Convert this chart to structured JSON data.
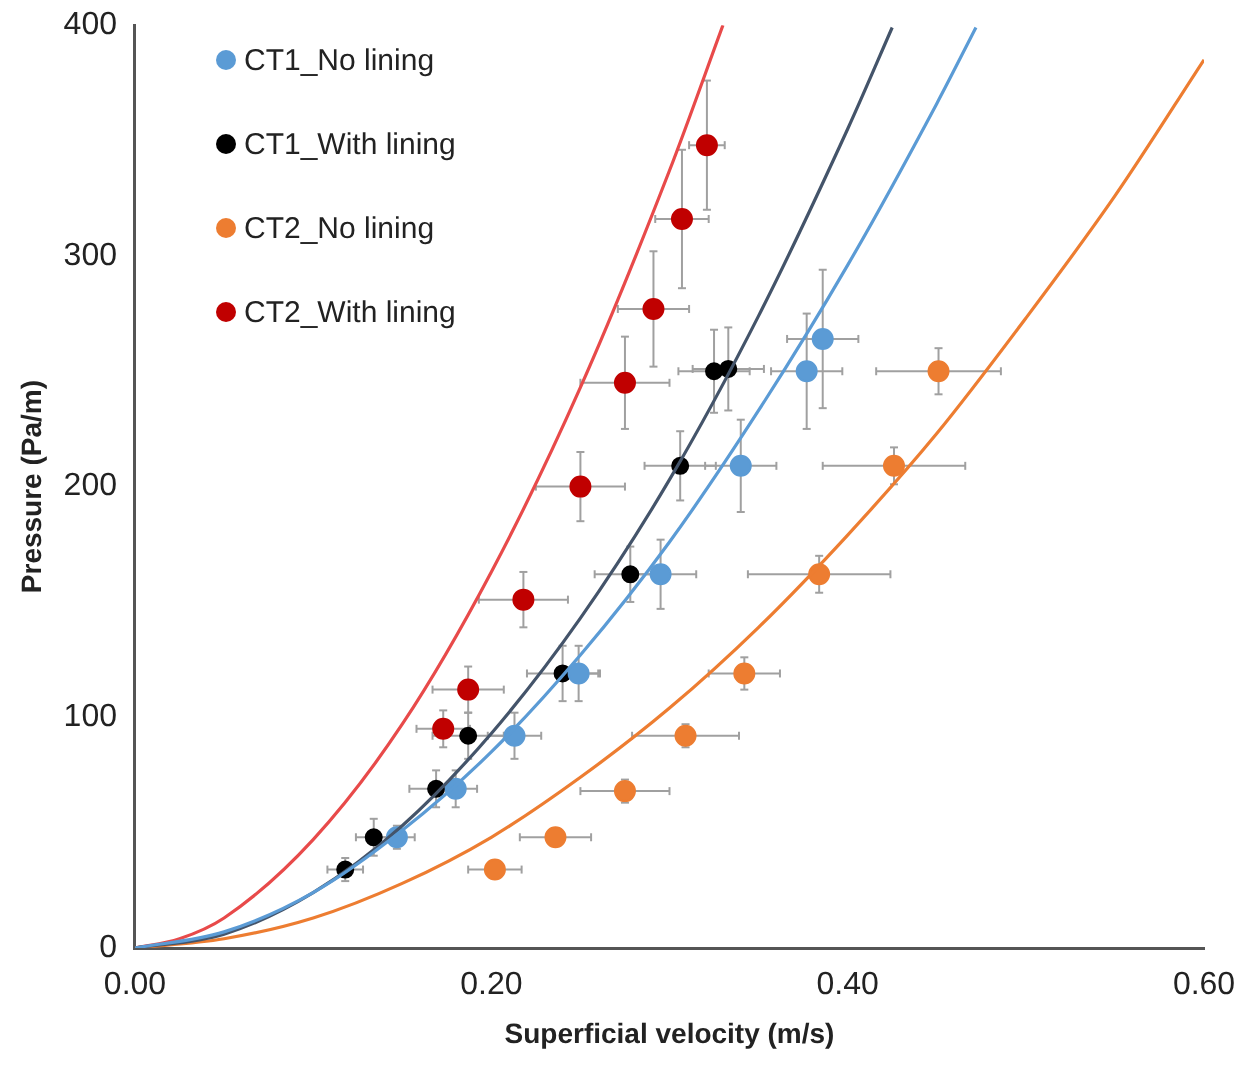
{
  "chart_data": {
    "type": "scatter",
    "xlabel": "Superficial velocity (m/s)",
    "ylabel": "Pressure (Pa/m)",
    "xlim": [
      0,
      0.6
    ],
    "ylim": [
      0,
      400
    ],
    "xticks": [
      {
        "value": 0,
        "label": "0.00"
      },
      {
        "value": 0.2,
        "label": "0.20"
      },
      {
        "value": 0.4,
        "label": "0.40"
      },
      {
        "value": 0.6,
        "label": "0.60"
      }
    ],
    "yticks": [
      0,
      100,
      200,
      300,
      400
    ],
    "grid": false,
    "legend": "top left",
    "marker": "circle",
    "series": [
      {
        "name": "CT1_No lining",
        "color": "#5b9bd5",
        "x": [
          0.147,
          0.18,
          0.213,
          0.249,
          0.295,
          0.34,
          0.377,
          0.386
        ],
        "values": [
          48,
          69,
          92,
          119,
          162,
          209,
          250,
          264
        ],
        "errors": [
          5,
          8,
          10,
          12,
          15,
          20,
          25,
          30
        ],
        "xerrors": [
          0.01,
          0.012,
          0.015,
          0.012,
          0.02,
          0.02,
          0.02,
          0.02
        ]
      },
      {
        "name": "CT1_With lining",
        "color": "#000000",
        "x": [
          0.118,
          0.134,
          0.169,
          0.187,
          0.24,
          0.278,
          0.306,
          0.325,
          0.333
        ],
        "values": [
          34,
          48,
          69,
          92,
          119,
          162,
          209,
          250,
          251
        ],
        "errors": [
          5,
          8,
          8,
          10,
          12,
          12,
          15,
          18,
          18
        ],
        "xerrors": [
          0.01,
          0.01,
          0.015,
          0.02,
          0.02,
          0.02,
          0.02,
          0.02,
          0.02
        ]
      },
      {
        "name": "CT2_No lining",
        "color": "#ed7d31",
        "x": [
          0.202,
          0.236,
          0.275,
          0.309,
          0.342,
          0.384,
          0.426,
          0.451
        ],
        "values": [
          34,
          48,
          68,
          92,
          119,
          162,
          209,
          250
        ],
        "errors": [
          null,
          null,
          5,
          5,
          7,
          8,
          8,
          10
        ],
        "xerrors": [
          0.015,
          0.02,
          0.025,
          0.03,
          0.02,
          0.04,
          0.04,
          0.035
        ]
      },
      {
        "name": "CT2_With lining",
        "color": "#c00000",
        "x": [
          0.173,
          0.187,
          0.218,
          0.25,
          0.275,
          0.291,
          0.307,
          0.321
        ],
        "values": [
          95,
          112,
          151,
          200,
          245,
          277,
          316,
          348
        ],
        "errors": [
          8,
          10,
          12,
          15,
          20,
          25,
          30,
          28
        ],
        "xerrors": [
          0.015,
          0.02,
          0.025,
          0.025,
          0.025,
          0.02,
          0.015,
          0.01
        ]
      },
      {
        "type": "line",
        "marker": "none",
        "color": "#5b9bd5",
        "x": [
          0,
          0.05,
          0.1,
          0.15,
          0.2,
          0.25,
          0.3,
          0.35,
          0.4,
          0.45,
          0.472
        ],
        "values": [
          0,
          7,
          24,
          51,
          85,
          127,
          176,
          233,
          296,
          366,
          399
        ]
      },
      {
        "type": "line",
        "marker": "none",
        "color": "#44546a",
        "x": [
          0,
          0.05,
          0.1,
          0.15,
          0.2,
          0.25,
          0.3,
          0.35,
          0.4,
          0.425
        ],
        "values": [
          0,
          6,
          24,
          53,
          93,
          143,
          203,
          274,
          355,
          399
        ]
      },
      {
        "type": "line",
        "marker": "none",
        "color": "#ed7d31",
        "x": [
          0,
          0.05,
          0.1,
          0.15,
          0.2,
          0.25,
          0.3,
          0.35,
          0.4,
          0.45,
          0.5,
          0.55,
          0.6
        ],
        "values": [
          0,
          4,
          13,
          28,
          48,
          74,
          104,
          139,
          179,
          223,
          273,
          326,
          385
        ]
      },
      {
        "type": "line",
        "marker": "none",
        "color": "#e84a4a",
        "x": [
          0,
          0.025,
          0.05,
          0.1,
          0.15,
          0.2,
          0.25,
          0.3,
          0.33
        ],
        "values": [
          0,
          4,
          13,
          47,
          97,
          163,
          243,
          337,
          400
        ]
      }
    ]
  }
}
